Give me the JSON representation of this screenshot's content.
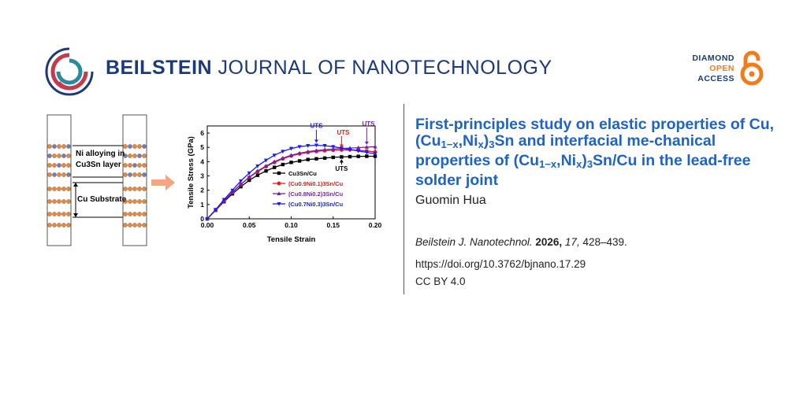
{
  "header": {
    "journal_bold": "BEILSTEIN",
    "journal_rest": "JOURNAL OF NANOTECHNOLOGY",
    "badge": {
      "line1": "DIAMOND",
      "line2": "OPEN",
      "line3": "ACCESS"
    }
  },
  "colors": {
    "navy": "#1d3a78",
    "title_blue": "#1f64c0",
    "orange": "#f07d1c",
    "logo_red": "#c23b4e",
    "logo_teal": "#2a8a99"
  },
  "article": {
    "title_p1": "First-principles study on elastic properties of Cu, (Cu",
    "title_sub1": "1−x",
    "title_p2": ",Ni",
    "title_sub2": "x",
    "title_p3": ")",
    "title_sub3": "3",
    "title_p4": "Sn and interfacial me-chanical properties of (Cu",
    "title_sub4": "1−x",
    "title_p5": ",Ni",
    "title_sub5": "x",
    "title_p6": ")",
    "title_sub6": "3",
    "title_p7": "Sn/Cu in the lead-free solder joint",
    "author": "Guomin Hua",
    "journal_abbrev": "Beilstein J. Nanotechnol.",
    "year": "2026,",
    "volume": "17,",
    "pages": "428–439.",
    "doi": "https://doi.org/10.3762/bjnano.17.29",
    "license": "CC BY 4.0"
  },
  "schematic": {
    "label_ni_line1": "Ni alloying in",
    "label_ni_line2": "Cu3Sn layer",
    "label_substrate": "Cu Substrate"
  },
  "chart_data": {
    "type": "line",
    "xlabel": "Tensile Strain",
    "ylabel": "Tensile Stress (GPa)",
    "xlim": [
      0,
      0.2
    ],
    "ylim": [
      0,
      6.5
    ],
    "xticks": [
      "0.00",
      "0.05",
      "0.10",
      "0.15",
      "0.20"
    ],
    "yticks": [
      "0",
      "1",
      "2",
      "3",
      "4",
      "5",
      "6"
    ],
    "legend_position": "bottom-right",
    "x": [
      0,
      0.01,
      0.02,
      0.03,
      0.04,
      0.05,
      0.06,
      0.07,
      0.08,
      0.09,
      0.1,
      0.11,
      0.12,
      0.13,
      0.14,
      0.15,
      0.16,
      0.17,
      0.18,
      0.19,
      0.2
    ],
    "series": [
      {
        "name": "Cu3Sn/Cu",
        "color": "#000000",
        "marker": "square",
        "values": [
          0,
          0.6,
          1.2,
          1.75,
          2.25,
          2.7,
          3.05,
          3.35,
          3.6,
          3.8,
          3.95,
          4.05,
          4.15,
          4.2,
          4.25,
          4.3,
          4.33,
          4.35,
          4.37,
          4.38,
          4.38
        ]
      },
      {
        "name": "(Cu0.9Ni0.1)3Sn/Cu",
        "color": "#e41a1c",
        "marker": "circle",
        "values": [
          0,
          0.62,
          1.25,
          1.85,
          2.4,
          2.9,
          3.3,
          3.65,
          3.95,
          4.2,
          4.4,
          4.55,
          4.65,
          4.72,
          4.77,
          4.8,
          4.82,
          4.83,
          4.8,
          4.75,
          4.68
        ]
      },
      {
        "name": "(Cu0.8Ni0.2)3Sn/Cu",
        "color": "#7b1fa2",
        "marker": "triangle-up",
        "values": [
          0,
          0.62,
          1.26,
          1.87,
          2.42,
          2.92,
          3.35,
          3.7,
          4.0,
          4.25,
          4.45,
          4.6,
          4.7,
          4.78,
          4.84,
          4.88,
          4.92,
          4.95,
          4.98,
          5.02,
          5.05
        ]
      },
      {
        "name": "(Cu0.7Ni0.3)3Sn/Cu",
        "color": "#1a1aff",
        "marker": "triangle-down",
        "values": [
          0,
          0.65,
          1.35,
          2.0,
          2.65,
          3.2,
          3.7,
          4.1,
          4.45,
          4.72,
          4.92,
          5.05,
          5.12,
          5.15,
          5.12,
          5.05,
          4.95,
          4.85,
          4.75,
          4.65,
          4.55
        ]
      }
    ],
    "annotations": [
      {
        "text": "UTS",
        "x": 0.13,
        "color": "#1a1aff"
      },
      {
        "text": "UTS",
        "x": 0.16,
        "color": "#e41a1c"
      },
      {
        "text": "UTS",
        "x": 0.19,
        "color": "#7b1fa2"
      },
      {
        "text": "UTS",
        "x": 0.16,
        "color": "#000000"
      }
    ]
  }
}
